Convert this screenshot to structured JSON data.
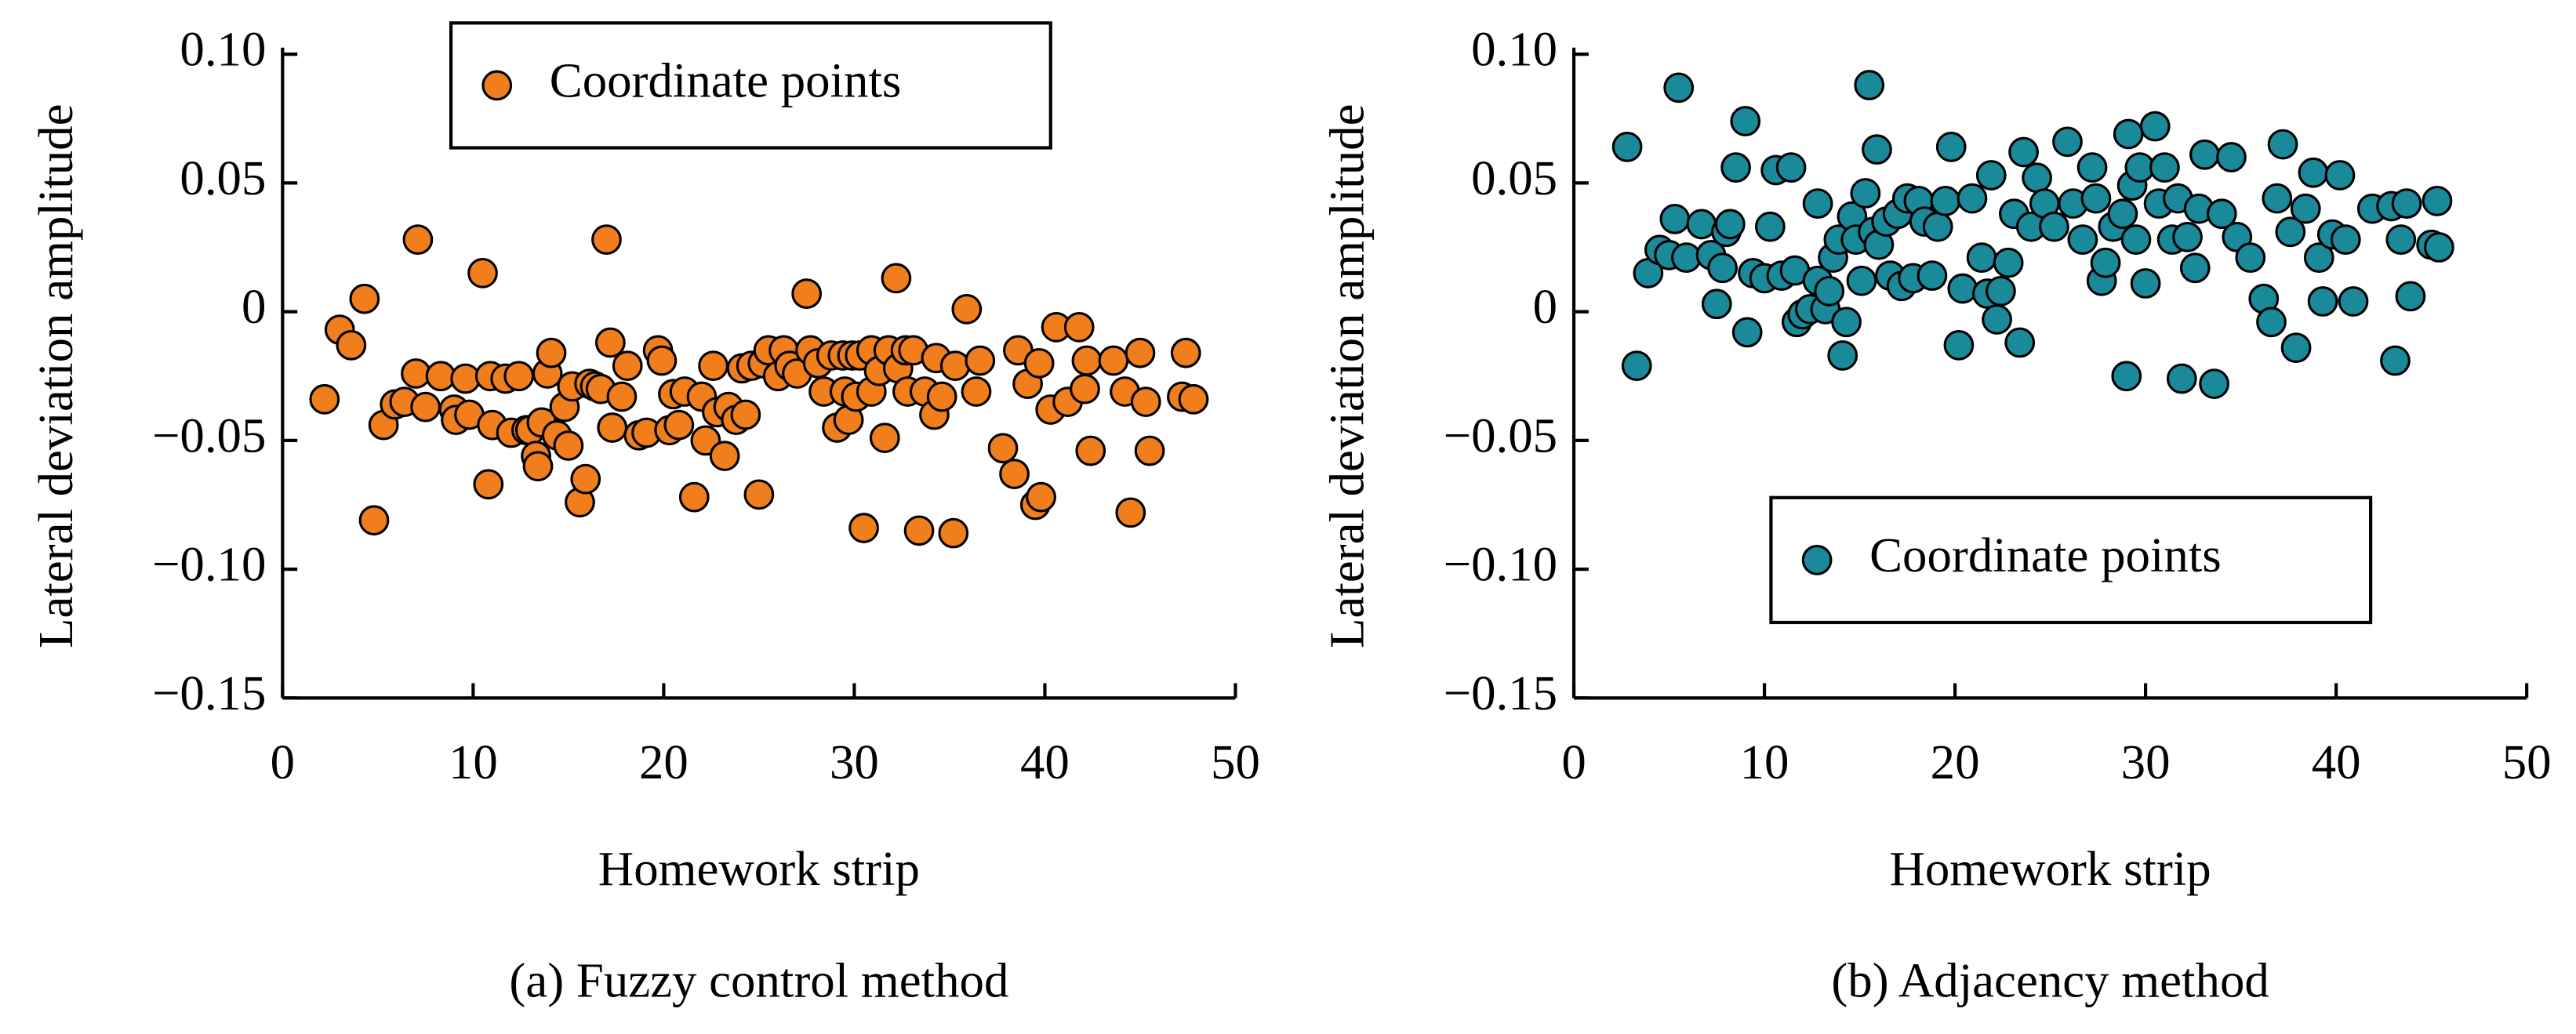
{
  "chart_data": [
    {
      "type": "scatter",
      "ylabel": "Lateral deviation amplitude",
      "xlabel": "Homework strip",
      "caption": "(a) Fuzzy control method",
      "xlim": [
        0,
        50
      ],
      "xticks": [
        0,
        10,
        20,
        30,
        40,
        50
      ],
      "ylim": [
        -0.15,
        0.1
      ],
      "yticks": [
        {
          "value": 0.1,
          "label": "0.10"
        },
        0.05,
        0,
        {
          "value": -0.05,
          "label": "−0.05"
        },
        {
          "value": -0.1,
          "label": "−0.10"
        },
        {
          "value": -0.15,
          "label": "−0.15"
        }
      ],
      "legend": "upper center",
      "x": [
        2.2,
        3.0,
        3.6,
        4.3,
        4.8,
        5.3,
        5.9,
        6.4,
        7.1,
        7.0,
        7.5,
        8.3,
        9.0,
        9.1,
        9.6,
        9.8,
        10.5,
        10.8,
        10.9,
        11.0,
        11.7,
        12.0,
        12.4,
        12.8,
        13.0,
        13.3,
        13.4,
        13.6,
        13.9,
        14.1,
        14.4,
        14.8,
        15.0,
        15.2,
        15.6,
        15.9,
        16.1,
        16.4,
        16.7,
        17.0,
        17.2,
        17.3,
        17.8,
        18.1,
        18.7,
        19.1,
        19.7,
        19.9,
        20.3,
        20.5,
        20.8,
        21.1,
        21.6,
        22.0,
        22.2,
        22.6,
        22.8,
        23.2,
        23.4,
        23.8,
        24.1,
        24.3,
        24.6,
        25.0,
        25.2,
        25.5,
        26.0,
        26.3,
        26.6,
        27.0,
        27.5,
        27.7,
        28.1,
        28.4,
        28.8,
        29.1,
        29.4,
        29.7,
        29.5,
        29.9,
        30.1,
        30.3,
        30.5,
        30.9,
        30.9,
        31.3,
        31.6,
        31.8,
        32.2,
        32.3,
        32.7,
        32.8,
        33.1,
        33.4,
        33.7,
        34.3,
        34.2,
        34.6,
        35.2,
        35.3,
        35.9,
        36.4,
        36.6,
        37.8,
        38.4,
        38.6,
        39.1,
        39.5,
        39.8,
        39.7,
        40.3,
        40.6,
        41.2,
        41.8,
        42.1,
        42.2,
        42.4,
        43.6,
        44.2,
        44.5,
        45.0,
        45.3,
        45.5,
        47.2,
        47.4,
        47.8
      ],
      "series": [
        {
          "name": "Coordinate points",
          "color": "#f07e1c",
          "values": [
            -0.034,
            -0.007,
            -0.013,
            0.005,
            -0.081,
            -0.044,
            -0.036,
            -0.035,
            0.028,
            -0.024,
            -0.037,
            -0.025,
            -0.038,
            -0.042,
            -0.026,
            -0.04,
            0.015,
            -0.067,
            -0.025,
            -0.044,
            -0.026,
            -0.047,
            -0.025,
            -0.046,
            -0.046,
            -0.056,
            -0.06,
            -0.043,
            -0.024,
            -0.016,
            -0.048,
            -0.037,
            -0.052,
            -0.029,
            -0.074,
            -0.065,
            -0.028,
            -0.029,
            -0.03,
            0.028,
            -0.012,
            -0.045,
            -0.033,
            -0.021,
            -0.048,
            -0.047,
            -0.015,
            -0.019,
            -0.046,
            -0.032,
            -0.044,
            -0.031,
            -0.072,
            -0.033,
            -0.05,
            -0.021,
            -0.039,
            -0.056,
            -0.037,
            -0.042,
            -0.022,
            -0.04,
            -0.021,
            -0.071,
            -0.02,
            -0.015,
            -0.025,
            -0.015,
            -0.021,
            -0.024,
            0.007,
            -0.015,
            -0.02,
            -0.031,
            -0.017,
            -0.045,
            -0.017,
            -0.042,
            -0.031,
            -0.017,
            -0.033,
            -0.017,
            -0.084,
            -0.015,
            -0.031,
            -0.023,
            -0.049,
            -0.015,
            0.013,
            -0.022,
            -0.015,
            -0.031,
            -0.015,
            -0.085,
            -0.031,
            -0.018,
            -0.04,
            -0.033,
            -0.086,
            -0.021,
            0.001,
            -0.031,
            -0.019,
            -0.053,
            -0.063,
            -0.015,
            -0.028,
            -0.075,
            -0.072,
            -0.02,
            -0.038,
            -0.006,
            -0.035,
            -0.006,
            -0.03,
            -0.019,
            -0.054,
            -0.019,
            -0.031,
            -0.078,
            -0.016,
            -0.035,
            -0.054,
            -0.033,
            -0.016,
            -0.034
          ]
        }
      ]
    },
    {
      "type": "scatter",
      "ylabel": "Lateral deviation amplitude",
      "xlabel": "Homework strip",
      "caption": "(b) Adjacency method",
      "xlim": [
        0,
        50
      ],
      "xticks": [
        0,
        10,
        20,
        30,
        40,
        50
      ],
      "ylim": [
        -0.15,
        0.1
      ],
      "yticks": [
        {
          "value": 0.1,
          "label": "0.10"
        },
        0.05,
        0,
        {
          "value": -0.05,
          "label": "−0.05"
        },
        {
          "value": -0.1,
          "label": "−0.10"
        },
        {
          "value": -0.15,
          "label": "−0.15"
        }
      ],
      "legend": "lower right",
      "x": [
        2.8,
        3.3,
        3.9,
        4.5,
        5.0,
        5.3,
        5.5,
        5.9,
        6.7,
        7.2,
        7.5,
        7.8,
        8.0,
        8.2,
        8.5,
        9.0,
        9.1,
        9.4,
        10.0,
        10.3,
        10.6,
        10.9,
        11.4,
        11.6,
        11.7,
        12.0,
        12.4,
        12.8,
        12.8,
        13.2,
        13.4,
        13.6,
        13.9,
        14.1,
        14.3,
        14.6,
        14.8,
        15.1,
        15.3,
        15.5,
        15.7,
        15.9,
        16.0,
        16.4,
        16.6,
        17.0,
        17.2,
        17.5,
        17.8,
        18.1,
        18.4,
        18.8,
        19.1,
        19.5,
        19.8,
        20.2,
        20.4,
        20.9,
        21.4,
        21.7,
        21.9,
        22.2,
        22.4,
        22.8,
        23.1,
        23.4,
        23.6,
        24.0,
        24.3,
        24.7,
        25.2,
        25.9,
        26.2,
        26.7,
        27.2,
        27.4,
        27.7,
        27.9,
        28.3,
        28.8,
        29.0,
        29.1,
        29.3,
        29.5,
        29.7,
        30.0,
        30.5,
        30.7,
        31.0,
        31.4,
        31.7,
        31.9,
        32.2,
        32.6,
        32.8,
        33.1,
        33.6,
        34.0,
        34.5,
        34.8,
        35.5,
        36.2,
        36.6,
        36.9,
        37.2,
        37.6,
        37.9,
        38.4,
        38.8,
        39.1,
        39.3,
        39.8,
        40.2,
        40.5,
        40.9,
        41.9,
        42.9,
        43.1,
        43.4,
        43.7,
        43.9,
        45.0,
        45.3,
        45.4
      ],
      "series": [
        {
          "name": "Coordinate points",
          "color": "#1a8a9a",
          "values": [
            0.064,
            -0.021,
            0.015,
            0.024,
            0.022,
            0.036,
            0.087,
            0.021,
            0.034,
            0.022,
            0.003,
            0.017,
            0.031,
            0.034,
            0.056,
            0.074,
            -0.008,
            0.015,
            0.013,
            0.033,
            0.055,
            0.014,
            0.056,
            0.016,
            -0.004,
            -0.001,
            0.001,
            0.042,
            0.012,
            0.001,
            0.008,
            0.021,
            0.028,
            -0.017,
            -0.004,
            0.037,
            0.028,
            0.012,
            0.046,
            0.088,
            0.031,
            0.063,
            0.026,
            0.035,
            0.014,
            0.038,
            0.01,
            0.044,
            0.013,
            0.043,
            0.035,
            0.014,
            0.033,
            0.043,
            0.064,
            -0.013,
            0.009,
            0.044,
            0.021,
            0.007,
            0.053,
            -0.003,
            0.008,
            0.019,
            0.038,
            -0.012,
            0.062,
            0.033,
            0.052,
            0.042,
            0.033,
            0.066,
            0.042,
            0.028,
            0.056,
            0.044,
            0.012,
            0.019,
            0.033,
            0.038,
            -0.025,
            0.069,
            0.049,
            0.028,
            0.056,
            0.011,
            0.072,
            0.042,
            0.056,
            0.028,
            0.044,
            -0.026,
            0.029,
            0.017,
            0.04,
            0.061,
            -0.028,
            0.038,
            0.06,
            0.029,
            0.021,
            0.005,
            -0.004,
            0.044,
            0.065,
            0.031,
            -0.014,
            0.04,
            0.054,
            0.021,
            0.004,
            0.03,
            0.053,
            0.028,
            0.004,
            0.04,
            0.041,
            -0.019,
            0.028,
            0.042,
            0.006,
            0.026,
            0.043,
            0.025
          ]
        }
      ]
    }
  ]
}
